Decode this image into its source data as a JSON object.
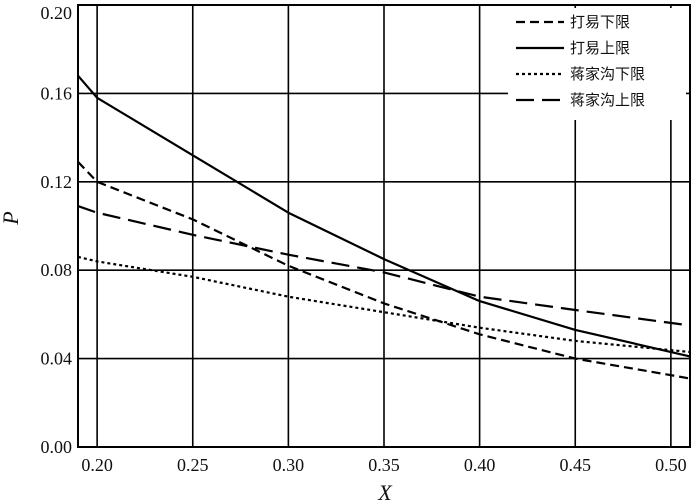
{
  "chart_data": {
    "type": "line",
    "title": "",
    "xlabel": "X",
    "ylabel": "P",
    "xlim": [
      0.19,
      0.51
    ],
    "ylim": [
      0.0,
      0.2
    ],
    "xticks": [
      "0.20",
      "0.25",
      "0.30",
      "0.35",
      "0.40",
      "0.45",
      "0.50"
    ],
    "yticks": [
      "0.00",
      "0.04",
      "0.08",
      "0.12",
      "0.16",
      "0.20"
    ],
    "grid": true,
    "legend_position": "top-right",
    "series": [
      {
        "name": "打易下限",
        "dash": "9,5",
        "x": [
          0.19,
          0.2,
          0.25,
          0.3,
          0.35,
          0.4,
          0.45,
          0.51
        ],
        "y": [
          0.129,
          0.12,
          0.103,
          0.082,
          0.065,
          0.051,
          0.04,
          0.031
        ]
      },
      {
        "name": "打易上限",
        "dash": "",
        "x": [
          0.19,
          0.2,
          0.25,
          0.3,
          0.35,
          0.4,
          0.45,
          0.51
        ],
        "y": [
          0.168,
          0.158,
          0.132,
          0.106,
          0.085,
          0.066,
          0.053,
          0.041
        ]
      },
      {
        "name": "蒋家沟下限",
        "dash": "3,3",
        "x": [
          0.19,
          0.2,
          0.25,
          0.3,
          0.35,
          0.4,
          0.45,
          0.51
        ],
        "y": [
          0.086,
          0.084,
          0.077,
          0.068,
          0.061,
          0.054,
          0.048,
          0.043
        ]
      },
      {
        "name": "蒋家沟上限",
        "dash": "18,8",
        "x": [
          0.19,
          0.2,
          0.25,
          0.3,
          0.35,
          0.4,
          0.45,
          0.51
        ],
        "y": [
          0.109,
          0.106,
          0.096,
          0.087,
          0.079,
          0.068,
          0.062,
          0.055
        ]
      }
    ]
  }
}
